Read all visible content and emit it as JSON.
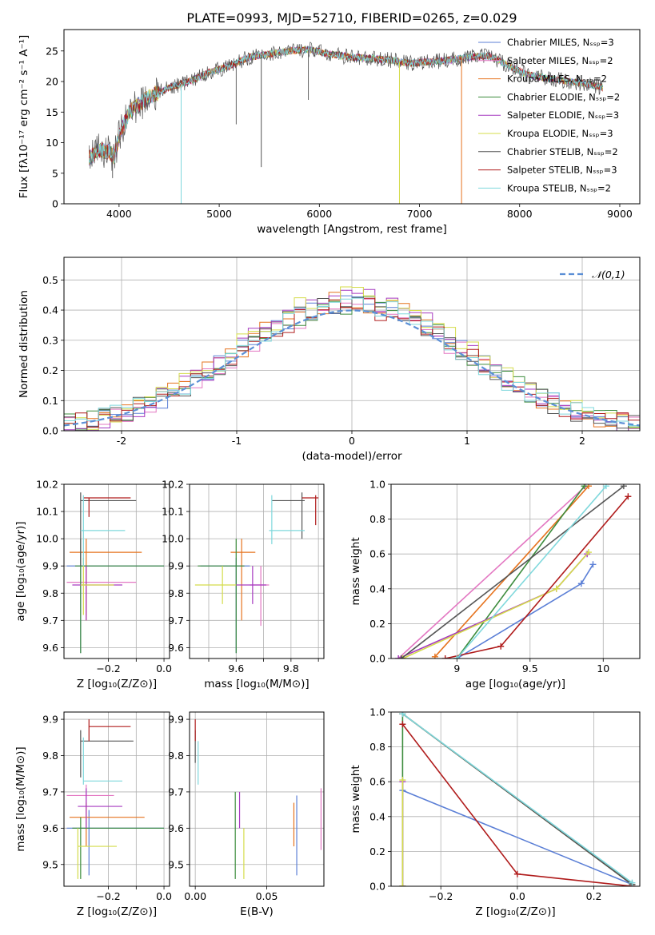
{
  "figure": {
    "title": "PLATE=0993, MJD=52710, FIBERID=0265, z=0.029"
  },
  "colors": {
    "Chabrier MILES": "#5b7fd6",
    "Salpeter MILES": "#e377c2",
    "Kroupa MILES": "#e6731e",
    "Chabrier ELODIE": "#3c8c3c",
    "Salpeter ELODIE": "#a63ac0",
    "Kroupa ELODIE": "#d4dc4a",
    "Chabrier STELIB": "#555555",
    "Salpeter STELIB": "#b01c1c",
    "Kroupa STELIB": "#7fd8dc",
    "normal_curve": "#5b8fd6",
    "grid": "#b0b0b0"
  },
  "legend": {
    "entries": [
      {
        "label": "Chabrier MILES, Nₛₛₚ=3",
        "model": "Chabrier MILES"
      },
      {
        "label": "Salpeter MILES, Nₛₛₚ=2",
        "model": "Salpeter MILES"
      },
      {
        "label": "Kroupa MILES, Nₛₛₚ=2",
        "model": "Kroupa MILES"
      },
      {
        "label": "Chabrier ELODIE, Nₛₛₚ=2",
        "model": "Chabrier ELODIE"
      },
      {
        "label": "Salpeter ELODIE, Nₛₛₚ=3",
        "model": "Salpeter ELODIE"
      },
      {
        "label": "Kroupa ELODIE, Nₛₛₚ=3",
        "model": "Kroupa ELODIE"
      },
      {
        "label": "Chabrier STELIB, Nₛₛₚ=2",
        "model": "Chabrier STELIB"
      },
      {
        "label": "Salpeter STELIB, Nₛₛₚ=3",
        "model": "Salpeter STELIB"
      },
      {
        "label": "Kroupa STELIB, Nₛₛₚ=2",
        "model": "Kroupa STELIB"
      }
    ]
  },
  "chart_data": [
    {
      "id": "spectrum",
      "type": "line",
      "xlabel": "wavelength [Angstrom, rest frame]",
      "ylabel": "Flux [fλ10⁻¹⁷ erg cm⁻² s⁻¹ A⁻¹]",
      "xlim": [
        3450,
        9200
      ],
      "ylim": [
        0,
        28.5
      ],
      "xticks": [
        4000,
        5000,
        6000,
        7000,
        8000,
        9000
      ],
      "yticks": [
        0,
        5,
        10,
        15,
        20,
        25
      ],
      "continuum": {
        "x": [
          3700,
          3800,
          3900,
          3950,
          4000,
          4100,
          4300,
          4500,
          4700,
          4900,
          5100,
          5300,
          5500,
          5700,
          5900,
          6100,
          6300,
          6500,
          6700,
          6900,
          7100,
          7300,
          7500,
          7700,
          7900,
          8100,
          8300,
          8500,
          8700,
          8830
        ],
        "y": [
          7.5,
          8.8,
          8.5,
          7.5,
          11.0,
          15.0,
          17.5,
          19.0,
          20.0,
          21.5,
          22.5,
          24.0,
          24.5,
          25.0,
          25.2,
          24.5,
          24.0,
          23.8,
          23.5,
          23.0,
          23.2,
          23.5,
          24.0,
          24.2,
          22.5,
          21.0,
          20.5,
          20.0,
          19.5,
          19.0
        ]
      },
      "dips": [
        {
          "x": 3935,
          "y": 4.2
        },
        {
          "x": 4620,
          "y": 0.0,
          "series": "Kroupa STELIB"
        },
        {
          "x": 5170,
          "y": 13.0
        },
        {
          "x": 5420,
          "y": 6.0,
          "series": "Chabrier STELIB"
        },
        {
          "x": 5890,
          "y": 17.0
        },
        {
          "x": 6800,
          "y": 0.0,
          "series": "Kroupa ELODIE"
        },
        {
          "x": 7420,
          "y": 0.0,
          "series": "Kroupa MILES"
        }
      ]
    },
    {
      "id": "residuals",
      "type": "histogram",
      "xlabel": "(data-model)/error",
      "ylabel": "Normed distribution",
      "xlim": [
        -2.5,
        2.5
      ],
      "ylim": [
        0,
        0.575
      ],
      "xticks": [
        -2,
        -1,
        0,
        1,
        2
      ],
      "yticks": [
        0.0,
        0.1,
        0.2,
        0.3,
        0.4,
        0.5
      ],
      "bin_start": -2.5,
      "bin_width": 0.1,
      "gaussian": {
        "label": "𝒩(0,1)",
        "mean": 0,
        "sigma": 1
      },
      "series": [
        {
          "name": "Chabrier MILES",
          "amp": 0.42
        },
        {
          "name": "Salpeter MILES",
          "amp": 0.41
        },
        {
          "name": "Kroupa MILES",
          "amp": 0.43
        },
        {
          "name": "Chabrier ELODIE",
          "amp": 0.42
        },
        {
          "name": "Salpeter ELODIE",
          "amp": 0.44
        },
        {
          "name": "Kroupa ELODIE",
          "amp": 0.45
        },
        {
          "name": "Chabrier STELIB",
          "amp": 0.42
        },
        {
          "name": "Salpeter STELIB",
          "amp": 0.41
        },
        {
          "name": "Kroupa STELIB",
          "amp": 0.42
        }
      ]
    },
    {
      "id": "z_age",
      "type": "scatter",
      "xlabel": "Z [log₁₀(Z/Z⊙)]",
      "ylabel": "age  [log₁₀(age/yr)]",
      "xlim": [
        -0.36,
        0.02
      ],
      "ylim": [
        9.56,
        10.2
      ],
      "xticks": [
        -0.2,
        -0.1,
        0.0
      ],
      "xticklabels": [
        "−0.2",
        "",
        "0.0"
      ],
      "yticks": [
        9.6,
        9.7,
        9.8,
        9.9,
        10.0,
        10.1,
        10.2
      ],
      "points": [
        {
          "series": "Chabrier MILES",
          "x": -0.3,
          "xlo": -0.35,
          "xhi": 0.0,
          "y": 9.9,
          "ylo": 9.58,
          "yhi": 9.95
        },
        {
          "series": "Salpeter MILES",
          "x": -0.28,
          "xlo": -0.35,
          "xhi": -0.1,
          "y": 9.84,
          "ylo": 9.72,
          "yhi": 9.9
        },
        {
          "series": "Kroupa MILES",
          "x": -0.28,
          "xlo": -0.34,
          "xhi": -0.08,
          "y": 9.95,
          "ylo": 9.7,
          "yhi": 10.0
        },
        {
          "series": "Chabrier ELODIE",
          "x": -0.3,
          "xlo": -0.32,
          "xhi": 0.0,
          "y": 9.9,
          "ylo": 9.58,
          "yhi": 10.0
        },
        {
          "series": "Salpeter ELODIE",
          "x": -0.28,
          "xlo": -0.33,
          "xhi": -0.15,
          "y": 9.83,
          "ylo": 9.7,
          "yhi": 9.9
        },
        {
          "series": "Kroupa ELODIE",
          "x": -0.29,
          "xlo": -0.3,
          "xhi": -0.18,
          "y": 9.83,
          "ylo": 9.72,
          "yhi": 9.93
        },
        {
          "series": "Chabrier STELIB",
          "x": -0.3,
          "xlo": -0.3,
          "xhi": -0.1,
          "y": 10.14,
          "ylo": 9.9,
          "yhi": 10.17
        },
        {
          "series": "Salpeter STELIB",
          "x": -0.27,
          "xlo": -0.29,
          "xhi": -0.12,
          "y": 10.15,
          "ylo": 10.08,
          "yhi": 10.15
        },
        {
          "series": "Kroupa STELIB",
          "x": -0.29,
          "xlo": -0.3,
          "xhi": -0.14,
          "y": 10.03,
          "ylo": 9.9,
          "yhi": 10.16
        }
      ]
    },
    {
      "id": "mass_age",
      "type": "scatter",
      "xlabel": "mass [log₁₀(M/M⊙)]",
      "ylabel": "",
      "xlim": [
        9.43,
        9.92
      ],
      "ylim": [
        9.56,
        10.2
      ],
      "xticks": [
        9.5,
        9.6,
        9.7,
        9.8,
        9.9
      ],
      "xticklabels": [
        "",
        "9.6",
        "",
        "9.8",
        ""
      ],
      "yticks": [
        9.6,
        9.7,
        9.8,
        9.9,
        10.0,
        10.1,
        10.2
      ],
      "points": [
        {
          "series": "Chabrier MILES",
          "x": 9.6,
          "xlo": 9.47,
          "xhi": 9.65,
          "y": 9.9,
          "ylo": 9.58,
          "yhi": 9.93
        },
        {
          "series": "Salpeter MILES",
          "x": 9.69,
          "xlo": 9.65,
          "xhi": 9.72,
          "y": 9.83,
          "ylo": 9.68,
          "yhi": 9.9
        },
        {
          "series": "Kroupa MILES",
          "x": 9.62,
          "xlo": 9.58,
          "xhi": 9.67,
          "y": 9.95,
          "ylo": 9.7,
          "yhi": 10.0
        },
        {
          "series": "Chabrier ELODIE",
          "x": 9.6,
          "xlo": 9.46,
          "xhi": 9.63,
          "y": 9.9,
          "ylo": 9.58,
          "yhi": 10.0
        },
        {
          "series": "Salpeter ELODIE",
          "x": 9.66,
          "xlo": 9.6,
          "xhi": 9.71,
          "y": 9.83,
          "ylo": 9.76,
          "yhi": 9.9
        },
        {
          "series": "Kroupa ELODIE",
          "x": 9.55,
          "xlo": 9.45,
          "xhi": 9.6,
          "y": 9.83,
          "ylo": 9.76,
          "yhi": 9.9
        },
        {
          "series": "Chabrier STELIB",
          "x": 9.84,
          "xlo": 9.73,
          "xhi": 9.85,
          "y": 10.14,
          "ylo": 10.0,
          "yhi": 10.17
        },
        {
          "series": "Salpeter STELIB",
          "x": 9.89,
          "xlo": 9.84,
          "xhi": 9.9,
          "y": 10.15,
          "ylo": 10.05,
          "yhi": 10.16
        },
        {
          "series": "Kroupa STELIB",
          "x": 9.73,
          "xlo": 9.72,
          "xhi": 9.85,
          "y": 10.03,
          "ylo": 9.98,
          "yhi": 10.16
        }
      ]
    },
    {
      "id": "age_massweight",
      "type": "line",
      "xlabel": "age  [log₁₀(age/yr)]",
      "ylabel": "mass weight",
      "xlim": [
        8.55,
        10.25
      ],
      "ylim": [
        0,
        1
      ],
      "xticks": [
        9.0,
        9.5,
        10.0
      ],
      "yticks": [
        0.0,
        0.2,
        0.4,
        0.6,
        0.8,
        1.0
      ],
      "series": [
        {
          "name": "Chabrier MILES",
          "x": [
            9.0,
            9.85,
            9.93
          ],
          "y": [
            0.0,
            0.43,
            0.54
          ]
        },
        {
          "name": "Salpeter MILES",
          "x": [
            8.6,
            9.88
          ],
          "y": [
            0.0,
            0.99
          ]
        },
        {
          "name": "Kroupa MILES",
          "x": [
            8.85,
            9.9
          ],
          "y": [
            0.01,
            0.99
          ]
        },
        {
          "name": "Chabrier ELODIE",
          "x": [
            9.0,
            9.87
          ],
          "y": [
            0.0,
            0.99
          ]
        },
        {
          "name": "Salpeter ELODIE",
          "x": [
            8.6,
            9.68,
            9.89
          ],
          "y": [
            0.0,
            0.4,
            0.6
          ]
        },
        {
          "name": "Kroupa ELODIE",
          "x": [
            8.63,
            9.68,
            9.9
          ],
          "y": [
            0.0,
            0.4,
            0.61
          ]
        },
        {
          "name": "Chabrier STELIB",
          "x": [
            8.62,
            10.14
          ],
          "y": [
            0.0,
            0.99
          ]
        },
        {
          "name": "Salpeter STELIB",
          "x": [
            8.92,
            9.3,
            10.17
          ],
          "y": [
            0.0,
            0.07,
            0.93
          ]
        },
        {
          "name": "Kroupa STELIB",
          "x": [
            9.0,
            10.02
          ],
          "y": [
            0.0,
            0.99
          ]
        }
      ]
    },
    {
      "id": "z_mass",
      "type": "scatter",
      "xlabel": "Z [log₁₀(Z/Z⊙)]",
      "ylabel": "mass [log₁₀(M/M⊙)]",
      "xlim": [
        -0.36,
        0.02
      ],
      "ylim": [
        9.44,
        9.92
      ],
      "xticks": [
        -0.2,
        -0.1,
        0.0
      ],
      "xticklabels": [
        "−0.2",
        "",
        "0.0"
      ],
      "yticks": [
        9.5,
        9.6,
        9.7,
        9.8,
        9.9
      ],
      "points": [
        {
          "series": "Chabrier MILES",
          "x": -0.27,
          "xlo": -0.35,
          "xhi": 0.0,
          "y": 9.6,
          "ylo": 9.47,
          "yhi": 9.65
        },
        {
          "series": "Salpeter MILES",
          "x": -0.28,
          "xlo": -0.35,
          "xhi": -0.18,
          "y": 9.69,
          "ylo": 9.65,
          "yhi": 9.72
        },
        {
          "series": "Kroupa MILES",
          "x": -0.28,
          "xlo": -0.34,
          "xhi": -0.07,
          "y": 9.63,
          "ylo": 9.55,
          "yhi": 9.67
        },
        {
          "series": "Chabrier ELODIE",
          "x": -0.3,
          "xlo": -0.33,
          "xhi": 0.0,
          "y": 9.6,
          "ylo": 9.46,
          "yhi": 9.63
        },
        {
          "series": "Salpeter ELODIE",
          "x": -0.28,
          "xlo": -0.31,
          "xhi": -0.15,
          "y": 9.66,
          "ylo": 9.6,
          "yhi": 9.71
        },
        {
          "series": "Kroupa ELODIE",
          "x": -0.31,
          "xlo": -0.31,
          "xhi": -0.17,
          "y": 9.55,
          "ylo": 9.46,
          "yhi": 9.6
        },
        {
          "series": "Chabrier STELIB",
          "x": -0.3,
          "xlo": -0.3,
          "xhi": -0.11,
          "y": 9.84,
          "ylo": 9.74,
          "yhi": 9.87
        },
        {
          "series": "Salpeter STELIB",
          "x": -0.27,
          "xlo": -0.27,
          "xhi": -0.12,
          "y": 9.88,
          "ylo": 9.84,
          "yhi": 9.9
        },
        {
          "series": "Kroupa STELIB",
          "x": -0.29,
          "xlo": -0.29,
          "xhi": -0.15,
          "y": 9.73,
          "ylo": 9.72,
          "yhi": 9.85
        }
      ]
    },
    {
      "id": "ebv_mass",
      "type": "scatter",
      "xlabel": "E(B-V)",
      "ylabel": "",
      "xlim": [
        -0.004,
        0.09
      ],
      "ylim": [
        9.44,
        9.92
      ],
      "xticks": [
        0.0,
        0.05
      ],
      "xticklabels": [
        "0.00",
        "0.05"
      ],
      "yticks": [
        9.5,
        9.6,
        9.7,
        9.8,
        9.9
      ],
      "points": [
        {
          "series": "Chabrier MILES",
          "x": 0.071,
          "y": 9.6,
          "ylo": 9.47,
          "yhi": 9.69
        },
        {
          "series": "Salpeter MILES",
          "x": 0.088,
          "y": 9.6,
          "ylo": 9.54,
          "yhi": 9.71
        },
        {
          "series": "Kroupa MILES",
          "x": 0.069,
          "y": 9.6,
          "ylo": 9.55,
          "yhi": 9.67
        },
        {
          "series": "Chabrier ELODIE",
          "x": 0.028,
          "y": 9.6,
          "ylo": 9.46,
          "yhi": 9.7
        },
        {
          "series": "Salpeter ELODIE",
          "x": 0.031,
          "y": 9.66,
          "ylo": 9.6,
          "yhi": 9.7
        },
        {
          "series": "Kroupa ELODIE",
          "x": 0.034,
          "y": 9.55,
          "ylo": 9.46,
          "yhi": 9.6
        },
        {
          "series": "Chabrier STELIB",
          "x": 0.0,
          "y": 9.84,
          "ylo": 9.78,
          "yhi": 9.87
        },
        {
          "series": "Salpeter STELIB",
          "x": 0.0,
          "y": 9.88,
          "ylo": 9.84,
          "yhi": 9.9
        },
        {
          "series": "Kroupa STELIB",
          "x": 0.002,
          "y": 9.78,
          "ylo": 9.72,
          "yhi": 9.84
        }
      ]
    },
    {
      "id": "z_massweight",
      "type": "line",
      "xlabel": "Z [log₁₀(Z/Z⊙)]",
      "ylabel": "mass weight",
      "xlim": [
        -0.33,
        0.32
      ],
      "ylim": [
        0,
        1
      ],
      "xticks": [
        -0.2,
        0.0,
        0.2
      ],
      "xticklabels": [
        "−0.2",
        "0.0",
        "0.2"
      ],
      "yticks": [
        0.0,
        0.2,
        0.4,
        0.6,
        0.8,
        1.0
      ],
      "series": [
        {
          "name": "Chabrier MILES",
          "x": [
            -0.3,
            0.3
          ],
          "y": [
            0.55,
            0.01
          ]
        },
        {
          "name": "Salpeter MILES",
          "x": [
            -0.3,
            0.3
          ],
          "y": [
            0.99,
            0.01
          ]
        },
        {
          "name": "Kroupa MILES",
          "x": [
            -0.3,
            0.3
          ],
          "y": [
            0.99,
            0.01
          ]
        },
        {
          "name": "Chabrier ELODIE",
          "x": [
            -0.3,
            -0.3,
            0.3
          ],
          "y": [
            0.0,
            0.99,
            0.01
          ]
        },
        {
          "name": "Salpeter ELODIE",
          "x": [
            -0.3,
            -0.3
          ],
          "y": [
            0.0,
            0.6
          ]
        },
        {
          "name": "Kroupa ELODIE",
          "x": [
            -0.3,
            -0.3
          ],
          "y": [
            0.0,
            0.61
          ]
        },
        {
          "name": "Chabrier STELIB",
          "x": [
            -0.3,
            0.3
          ],
          "y": [
            0.99,
            0.01
          ]
        },
        {
          "name": "Salpeter STELIB",
          "x": [
            -0.3,
            0.0,
            0.3
          ],
          "y": [
            0.93,
            0.07,
            0.0
          ]
        },
        {
          "name": "Kroupa STELIB",
          "x": [
            -0.3,
            0.3
          ],
          "y": [
            0.99,
            0.02
          ]
        }
      ]
    }
  ]
}
